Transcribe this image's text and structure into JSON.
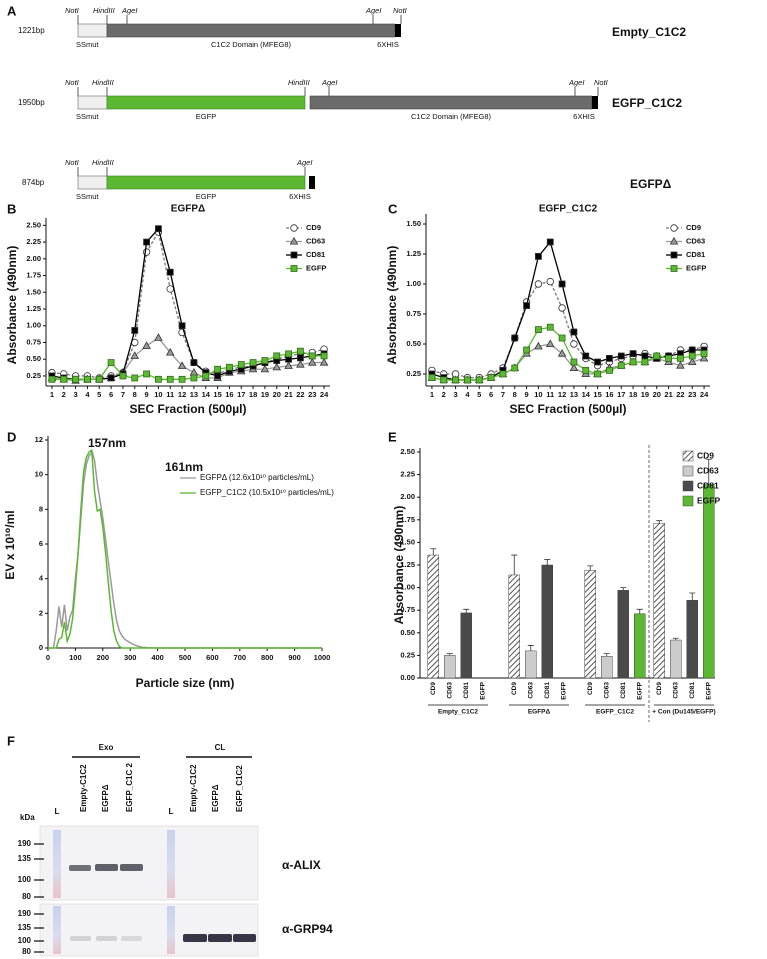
{
  "diagram": {
    "label": "A",
    "constructs": [
      {
        "size": "1221bp",
        "name": "Empty_C1C2",
        "sites": [
          "NotI",
          "HindIII",
          "AgeI",
          "AgeI",
          "NotI"
        ],
        "segments": [
          "SSmut",
          "C1C2 Domain (MFEG8)",
          "6XHIS"
        ]
      },
      {
        "size": "1950bp",
        "name": "EGFP_C1C2",
        "sites": [
          "NotI",
          "HindIII",
          "HindIII",
          "AgeI",
          "AgeI",
          "NotI"
        ],
        "segments": [
          "SSmut",
          "EGFP",
          "C1C2 Domain (MFEG8)",
          "6XHIS"
        ]
      },
      {
        "size": "874bp",
        "name": "EGFPΔ",
        "sites": [
          "NotI",
          "HindIII",
          "AgeI"
        ],
        "segments": [
          "SSmut",
          "EGFP",
          "6XHIS"
        ]
      }
    ]
  },
  "chart_data": [
    {
      "type": "line",
      "label": "B",
      "title": "EGFPΔ",
      "y_label": "Absorbance (490nm)",
      "x_label": "SEC Fraction (500µl)",
      "categories": [
        "1",
        "2",
        "3",
        "4",
        "5",
        "6",
        "7",
        "8",
        "9",
        "10",
        "11",
        "12",
        "13",
        "14",
        "15",
        "16",
        "17",
        "18",
        "19",
        "20",
        "21",
        "22",
        "23",
        "24"
      ],
      "ylim": [
        0.1,
        2.55
      ],
      "yticks": [
        0.25,
        {
          "value": 0.5,
          "label": "0.50"
        },
        0.75,
        {
          "value": 1,
          "label": "1.00"
        },
        1.25,
        {
          "value": 1.5,
          "label": "1.50"
        },
        1.75,
        {
          "value": 2,
          "label": "2.00"
        },
        2.25,
        {
          "value": 2.5,
          "label": "2.50"
        }
      ],
      "series": [
        {
          "name": "CD9",
          "color": "#777777",
          "dashed": true,
          "marker": "circle",
          "marker_fill": "#ffffff",
          "values": [
            0.3,
            0.28,
            0.25,
            0.25,
            0.22,
            0.25,
            0.3,
            0.75,
            2.1,
            2.4,
            1.55,
            0.9,
            0.45,
            0.32,
            0.28,
            0.35,
            0.38,
            0.4,
            0.45,
            0.5,
            0.55,
            0.58,
            0.6,
            0.65
          ]
        },
        {
          "name": "CD63",
          "color": "#9a9a9a",
          "marker": "triangle",
          "values": [
            0.22,
            0.2,
            0.18,
            0.2,
            0.2,
            0.22,
            0.3,
            0.55,
            0.7,
            0.82,
            0.6,
            0.4,
            0.3,
            0.22,
            0.22,
            0.3,
            0.32,
            0.35,
            0.35,
            0.38,
            0.4,
            0.42,
            0.45,
            0.45
          ]
        },
        {
          "name": "CD81",
          "color": "#000000",
          "marker": "square",
          "values": [
            0.25,
            0.22,
            0.2,
            0.2,
            0.2,
            0.22,
            0.28,
            0.93,
            2.25,
            2.45,
            1.8,
            1.0,
            0.45,
            0.3,
            0.25,
            0.32,
            0.35,
            0.4,
            0.45,
            0.48,
            0.5,
            0.52,
            0.55,
            0.58
          ]
        },
        {
          "name": "EGFP",
          "color": "#5cb832",
          "marker": "square",
          "values": [
            0.2,
            0.2,
            0.2,
            0.2,
            0.2,
            0.45,
            0.25,
            0.22,
            0.28,
            0.2,
            0.2,
            0.2,
            0.22,
            0.25,
            0.35,
            0.38,
            0.42,
            0.45,
            0.48,
            0.55,
            0.58,
            0.62,
            0.55,
            0.55
          ]
        }
      ]
    },
    {
      "type": "line",
      "label": "C",
      "title": "EGFP_C1C2",
      "y_label": "Absorbance (490nm)",
      "x_label": "SEC Fraction (500µl)",
      "categories": [
        "1",
        "2",
        "3",
        "4",
        "5",
        "6",
        "7",
        "8",
        "9",
        "10",
        "11",
        "12",
        "13",
        "14",
        "15",
        "16",
        "17",
        "18",
        "19",
        "20",
        "21",
        "22",
        "23",
        "24"
      ],
      "ylim": [
        0.15,
        1.55
      ],
      "yticks": [
        0.25,
        {
          "value": 0.5,
          "label": "0.50"
        },
        0.75,
        {
          "value": 1,
          "label": "1.00"
        },
        1.25,
        {
          "value": 1.5,
          "label": "1.50"
        }
      ],
      "series": [
        {
          "name": "CD9",
          "color": "#777777",
          "dashed": true,
          "marker": "circle",
          "marker_fill": "#ffffff",
          "values": [
            0.28,
            0.25,
            0.25,
            0.22,
            0.22,
            0.25,
            0.3,
            0.55,
            0.85,
            1.0,
            1.02,
            0.8,
            0.5,
            0.38,
            0.32,
            0.35,
            0.38,
            0.4,
            0.42,
            0.4,
            0.4,
            0.45,
            0.45,
            0.48
          ]
        },
        {
          "name": "CD63",
          "color": "#9a9a9a",
          "marker": "triangle",
          "values": [
            0.22,
            0.2,
            0.2,
            0.2,
            0.2,
            0.22,
            0.25,
            0.3,
            0.42,
            0.48,
            0.5,
            0.42,
            0.3,
            0.25,
            0.25,
            0.3,
            0.32,
            0.35,
            0.35,
            0.38,
            0.35,
            0.32,
            0.35,
            0.38
          ]
        },
        {
          "name": "CD81",
          "color": "#000000",
          "marker": "square",
          "values": [
            0.25,
            0.22,
            0.2,
            0.2,
            0.2,
            0.22,
            0.28,
            0.55,
            0.82,
            1.23,
            1.35,
            1.0,
            0.6,
            0.4,
            0.35,
            0.38,
            0.4,
            0.42,
            0.4,
            0.38,
            0.4,
            0.42,
            0.45,
            0.45
          ]
        },
        {
          "name": "EGFP",
          "color": "#5cb832",
          "marker": "square",
          "values": [
            0.22,
            0.2,
            0.2,
            0.2,
            0.2,
            0.22,
            0.25,
            0.3,
            0.45,
            0.62,
            0.64,
            0.55,
            0.35,
            0.28,
            0.25,
            0.28,
            0.32,
            0.35,
            0.35,
            0.4,
            0.38,
            0.38,
            0.4,
            0.42
          ]
        }
      ]
    },
    {
      "type": "line",
      "label": "D",
      "y_label": "EV x 10¹⁰/ml",
      "x_label": "Particle size (nm)",
      "x": [
        0,
        20,
        30,
        40,
        50,
        60,
        70,
        80,
        90,
        100,
        110,
        120,
        130,
        140,
        150,
        157,
        161,
        170,
        180,
        190,
        200,
        210,
        220,
        230,
        240,
        250,
        260,
        270,
        280,
        300,
        320,
        340,
        360,
        400,
        500,
        1000
      ],
      "xlim": [
        0,
        1000
      ],
      "xticks": [
        0,
        100,
        200,
        300,
        400,
        500,
        600,
        700,
        800,
        900,
        1000
      ],
      "ylim": [
        0,
        12
      ],
      "yticks": [
        0,
        2,
        4,
        6,
        8,
        10,
        12
      ],
      "series": [
        {
          "name": "EGFPΔ (12.6x10¹⁰ particles/mL)",
          "color": "#9a9a9a",
          "values": [
            0,
            0,
            1.0,
            2.4,
            1.2,
            2.5,
            1.0,
            1.8,
            2.2,
            4.0,
            5.5,
            7.5,
            9.5,
            10.6,
            11.1,
            11.2,
            11.35,
            10.8,
            9.5,
            8.5,
            7.5,
            6.3,
            5.0,
            3.8,
            2.6,
            1.6,
            1.0,
            0.7,
            0.5,
            0.3,
            0.15,
            0.05,
            0.02,
            0,
            0,
            0
          ]
        },
        {
          "name": "EGFP_C1C2 (10.5x10¹⁰ particles/mL)",
          "color": "#5cb832",
          "values": [
            0,
            0,
            0,
            0.5,
            0.6,
            1.5,
            0.4,
            0.8,
            1.7,
            3.5,
            5.5,
            8.0,
            10.2,
            11.0,
            11.3,
            11.4,
            11.1,
            9.0,
            7.9,
            8.0,
            7.0,
            5.5,
            3.8,
            2.2,
            1.0,
            0.4,
            0.1,
            0,
            0,
            0,
            0,
            0,
            0,
            0,
            0,
            0
          ]
        }
      ],
      "annotations": [
        {
          "text": "157nm",
          "color": "#5cb832"
        },
        {
          "text": "161nm",
          "color": "#9a9a9a"
        }
      ]
    },
    {
      "type": "bar",
      "label": "E",
      "y_label": "Absorbance (490nm)",
      "categories": [
        "Empty_C1C2",
        "EGFPΔ",
        "EGFP_C1C2",
        "+ Con (Du145/EGFP)"
      ],
      "ylim": [
        0,
        2.5
      ],
      "yticks": [
        {
          "value": 0,
          "label": "0.00"
        },
        0.25,
        {
          "value": 0.5,
          "label": "0.50"
        },
        0.75,
        {
          "value": 1,
          "label": "1.00"
        },
        1.25,
        {
          "value": 1.5,
          "label": "1.50"
        },
        1.75,
        {
          "value": 2,
          "label": "2.00"
        },
        2.25,
        {
          "value": 2.5,
          "label": "2.50"
        }
      ],
      "series": [
        {
          "name": "CD9",
          "color": "#555555",
          "hatch": true,
          "values": [
            1.36,
            1.14,
            1.19,
            1.71
          ],
          "errors": [
            0.07,
            0.22,
            0.05,
            0.03
          ]
        },
        {
          "name": "CD63",
          "color": "#cccccc",
          "values": [
            0.25,
            0.3,
            0.24,
            0.42
          ],
          "errors": [
            0.02,
            0.06,
            0.03,
            0.02
          ]
        },
        {
          "name": "CD81",
          "color": "#4a4a4a",
          "values": [
            0.72,
            1.25,
            0.97,
            0.86
          ],
          "errors": [
            0.04,
            0.06,
            0.03,
            0.08
          ]
        },
        {
          "name": "EGFP",
          "color": "#5cb832",
          "values": [
            null,
            null,
            0.71,
            2.14
          ],
          "errors": [
            null,
            null,
            0.05,
            0.28
          ]
        }
      ]
    }
  ],
  "blot": {
    "label": "F",
    "unit": "kDa",
    "groups": [
      {
        "name": "Exo",
        "lanes": [
          "L",
          "Empty-C1C2",
          "EGFPΔ",
          "EGFP_C1C 2"
        ]
      },
      {
        "name": "CL",
        "lanes": [
          "L",
          "Empty-C1C2",
          "EGFPΔ",
          "EGFP_C1C2"
        ]
      }
    ],
    "markers": [
      "190",
      "135",
      "100",
      "80"
    ],
    "antibodies": [
      "α-ALIX",
      "α-GRP94"
    ]
  }
}
